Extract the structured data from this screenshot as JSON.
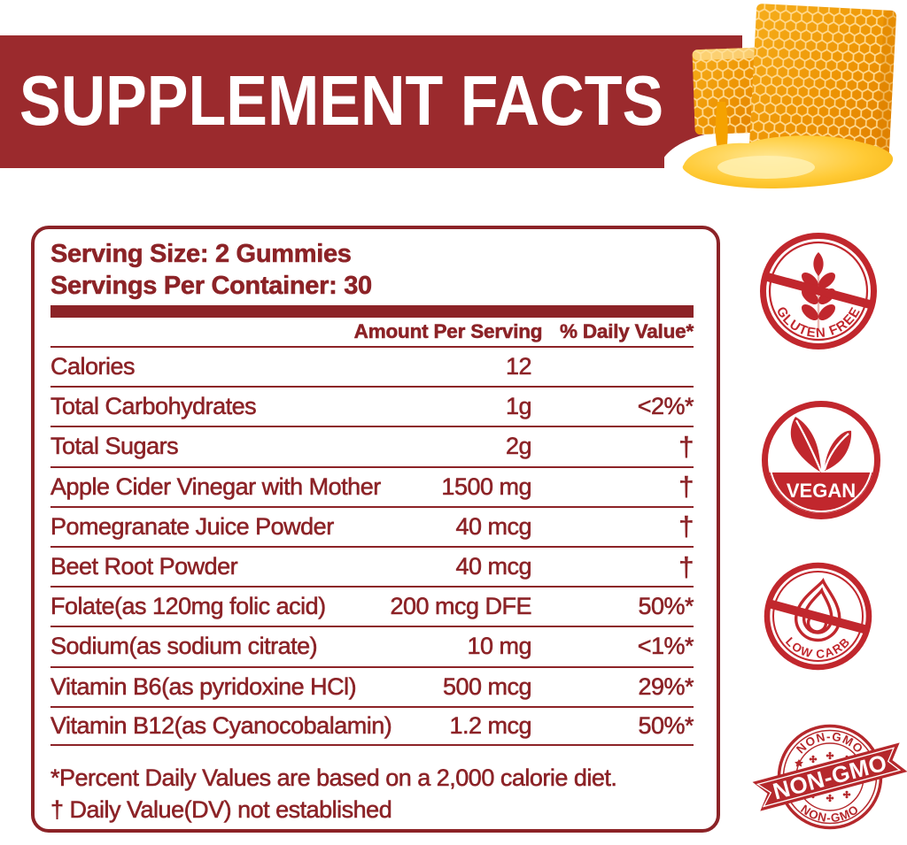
{
  "banner": {
    "title": "SUPPLEMENT FACTS",
    "bg_color": "#9b2a2d"
  },
  "panel": {
    "serving_size": "Serving Size: 2 Gummies",
    "servings_per_container": "Servings Per Container: 30",
    "columns": {
      "amount": "Amount Per Serving",
      "daily_value": "% Daily Value*"
    },
    "rows": [
      {
        "label": "Calories",
        "amount": "12",
        "dv": ""
      },
      {
        "label": "Total Carbohydrates",
        "amount": "1g",
        "dv": "<2%*"
      },
      {
        "label": "Total Sugars",
        "amount": "2g",
        "dv": "†"
      },
      {
        "label": "Apple Cider Vinegar with Mother",
        "amount": "1500 mg",
        "dv": "†"
      },
      {
        "label": "Pomegranate Juice Powder",
        "amount": "40 mcg",
        "dv": "†"
      },
      {
        "label": "Beet Root Powder",
        "amount": "40 mcg",
        "dv": "†"
      },
      {
        "label": "Folate(as 120mg folic acid)",
        "amount": "200 mcg DFE",
        "dv": "50%*"
      },
      {
        "label": "Sodium(as sodium citrate)",
        "amount": "10 mg",
        "dv": "<1%*"
      },
      {
        "label": "Vitamin B6(as pyridoxine HCl)",
        "amount": "500 mcg",
        "dv": "29%*"
      },
      {
        "label": "Vitamin B12(as Cyanocobalamin)",
        "amount": "1.2 mcg",
        "dv": "50%*"
      }
    ],
    "footnotes": [
      "*Percent Daily Values are based on a 2,000 calorie diet.",
      "† Daily Value(DV) not established"
    ]
  },
  "badges": {
    "gluten_free": {
      "label": "GLUTEN FREE"
    },
    "vegan": {
      "label": "VEGAN"
    },
    "low_carb": {
      "label": "LOW CARB"
    },
    "non_gmo": {
      "ribbon_label": "NON-GMO",
      "top_label": "NON-GMO",
      "bottom_label": "NON-GMO"
    }
  },
  "colors": {
    "maroon": "#8c2327",
    "banner_red": "#9b2a2d",
    "badge_red": "#c1272d",
    "stamp_red": "#b5282c",
    "honey_orange": "#f29913",
    "honey_light": "#ffd66b"
  }
}
